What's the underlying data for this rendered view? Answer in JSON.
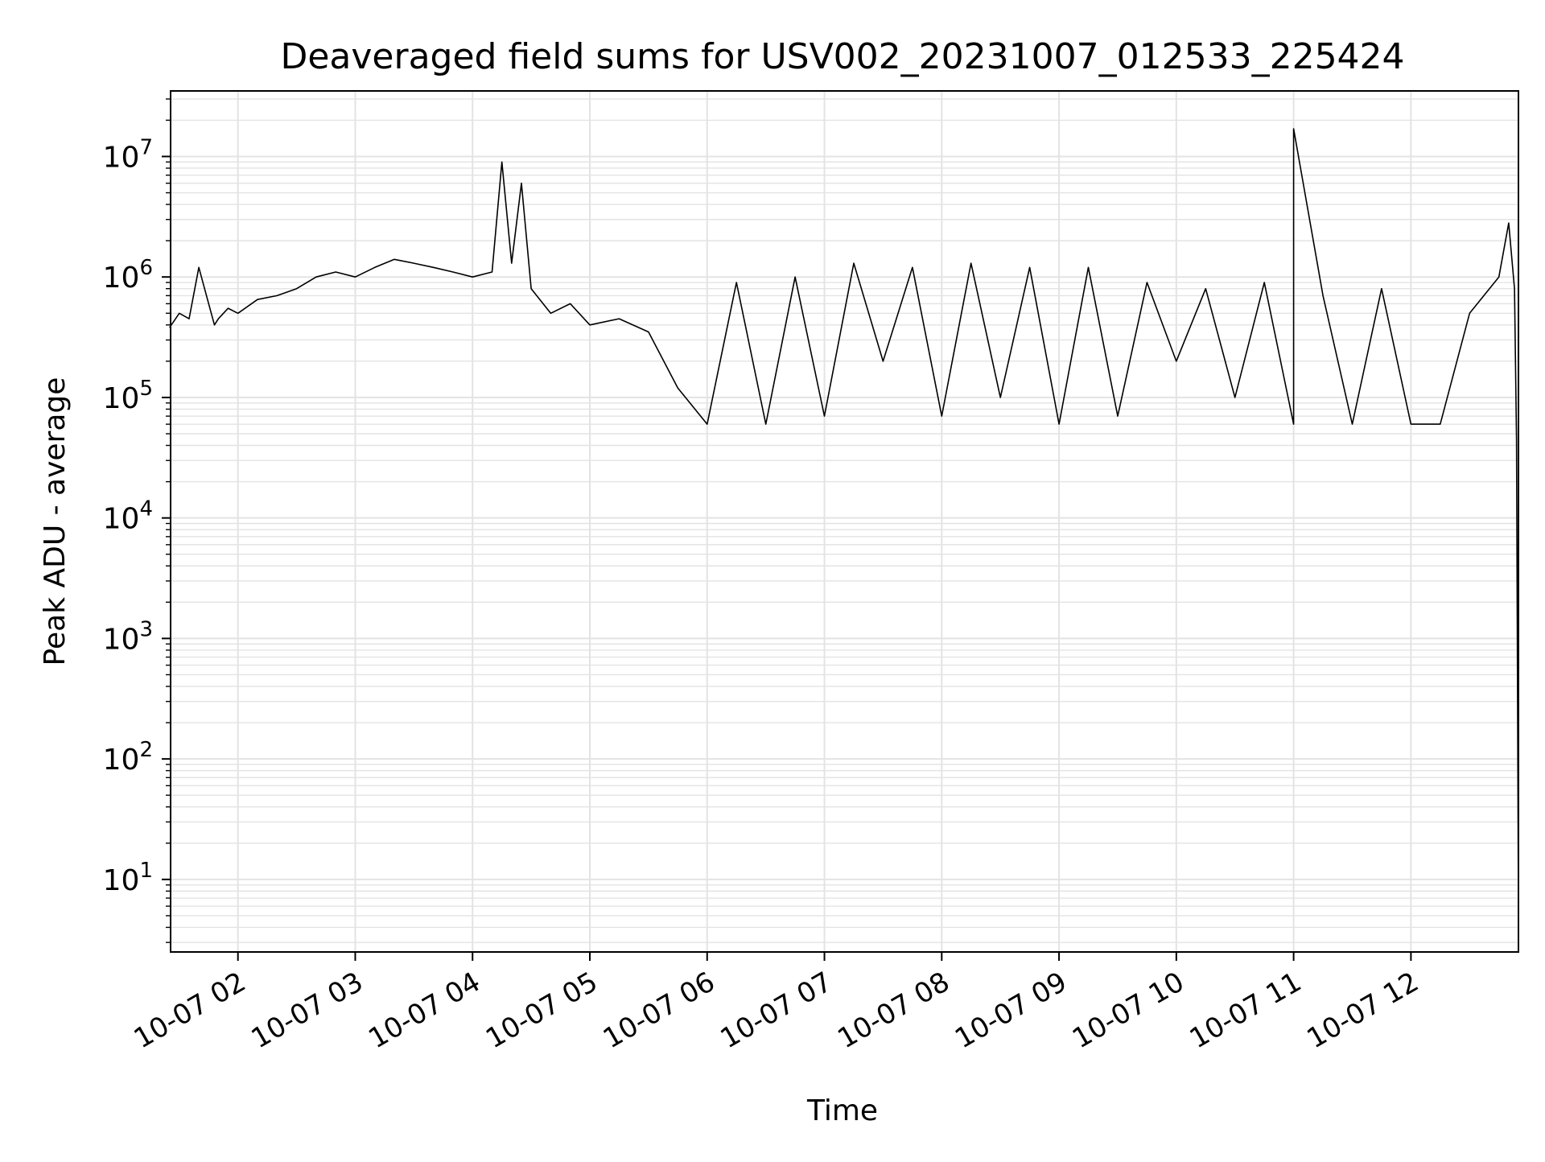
{
  "chart_data": {
    "type": "line",
    "title": "Deaveraged field sums for USV002_20231007_012533_225424",
    "xlabel": "Time",
    "ylabel": "Peak ADU - average",
    "yscale": "log",
    "ylim": [
      2.5,
      35000000
    ],
    "xlim": [
      "2023-10-07 01:25:33",
      "2023-10-07 12:55:00"
    ],
    "grid": true,
    "line_color": "#000000",
    "grid_color": "#e3e3e3",
    "x_ticks": [
      {
        "x": "2023-10-07 02:00",
        "label": "10-07 02"
      },
      {
        "x": "2023-10-07 03:00",
        "label": "10-07 03"
      },
      {
        "x": "2023-10-07 04:00",
        "label": "10-07 04"
      },
      {
        "x": "2023-10-07 05:00",
        "label": "10-07 05"
      },
      {
        "x": "2023-10-07 06:00",
        "label": "10-07 06"
      },
      {
        "x": "2023-10-07 07:00",
        "label": "10-07 07"
      },
      {
        "x": "2023-10-07 08:00",
        "label": "10-07 08"
      },
      {
        "x": "2023-10-07 09:00",
        "label": "10-07 09"
      },
      {
        "x": "2023-10-07 10:00",
        "label": "10-07 10"
      },
      {
        "x": "2023-10-07 11:00",
        "label": "10-07 11"
      },
      {
        "x": "2023-10-07 12:00",
        "label": "10-07 12"
      }
    ],
    "y_ticks": [
      {
        "value": 10,
        "base": "10",
        "exp": "1"
      },
      {
        "value": 100,
        "base": "10",
        "exp": "2"
      },
      {
        "value": 1000,
        "base": "10",
        "exp": "3"
      },
      {
        "value": 10000,
        "base": "10",
        "exp": "4"
      },
      {
        "value": 100000,
        "base": "10",
        "exp": "5"
      },
      {
        "value": 1000000,
        "base": "10",
        "exp": "6"
      },
      {
        "value": 10000000,
        "base": "10",
        "exp": "7"
      }
    ],
    "series": [
      {
        "x": [
          "2023-10-07 01:25",
          "2023-10-07 01:30",
          "2023-10-07 01:35",
          "2023-10-07 01:40",
          "2023-10-07 01:45",
          "2023-10-07 01:48",
          "2023-10-07 01:50",
          "2023-10-07 01:55",
          "2023-10-07 02:00",
          "2023-10-07 02:10",
          "2023-10-07 02:20",
          "2023-10-07 02:30",
          "2023-10-07 02:40",
          "2023-10-07 02:50",
          "2023-10-07 03:00",
          "2023-10-07 03:10",
          "2023-10-07 03:20",
          "2023-10-07 03:30",
          "2023-10-07 03:40",
          "2023-10-07 03:50",
          "2023-10-07 04:00",
          "2023-10-07 04:10",
          "2023-10-07 04:15",
          "2023-10-07 04:20",
          "2023-10-07 04:25",
          "2023-10-07 04:30",
          "2023-10-07 04:40",
          "2023-10-07 04:50",
          "2023-10-07 05:00",
          "2023-10-07 05:15",
          "2023-10-07 05:30",
          "2023-10-07 05:45",
          "2023-10-07 06:00",
          "2023-10-07 06:15",
          "2023-10-07 06:30",
          "2023-10-07 06:45",
          "2023-10-07 07:00",
          "2023-10-07 07:15",
          "2023-10-07 07:30",
          "2023-10-07 07:45",
          "2023-10-07 08:00",
          "2023-10-07 08:15",
          "2023-10-07 08:30",
          "2023-10-07 08:45",
          "2023-10-07 09:00",
          "2023-10-07 09:15",
          "2023-10-07 09:30",
          "2023-10-07 09:45",
          "2023-10-07 10:00",
          "2023-10-07 10:15",
          "2023-10-07 10:30",
          "2023-10-07 10:45",
          "2023-10-07 11:00",
          "2023-10-07 11:00",
          "2023-10-07 11:15",
          "2023-10-07 11:30",
          "2023-10-07 11:45",
          "2023-10-07 12:00",
          "2023-10-07 12:15",
          "2023-10-07 12:30",
          "2023-10-07 12:45",
          "2023-10-07 12:50",
          "2023-10-07 12:53",
          "2023-10-07 12:54",
          "2023-10-07 12:55"
        ],
        "y": [
          380000,
          500000,
          450000,
          1200000,
          600000,
          400000,
          450000,
          550000,
          500000,
          650000,
          700000,
          800000,
          1000000,
          1100000,
          1000000,
          1200000,
          1400000,
          1300000,
          1200000,
          1100000,
          1000000,
          1100000,
          9000000,
          1300000,
          6000000,
          800000,
          500000,
          600000,
          400000,
          450000,
          350000,
          120000,
          60000,
          900000,
          60000,
          1000000,
          70000,
          1300000,
          200000,
          1200000,
          70000,
          1300000,
          100000,
          1200000,
          60000,
          1200000,
          70000,
          900000,
          200000,
          800000,
          100000,
          900000,
          60000,
          17000000,
          700000,
          60000,
          800000,
          60000,
          60000,
          500000,
          1000000,
          2800000,
          800000,
          45000,
          5
        ]
      }
    ]
  }
}
